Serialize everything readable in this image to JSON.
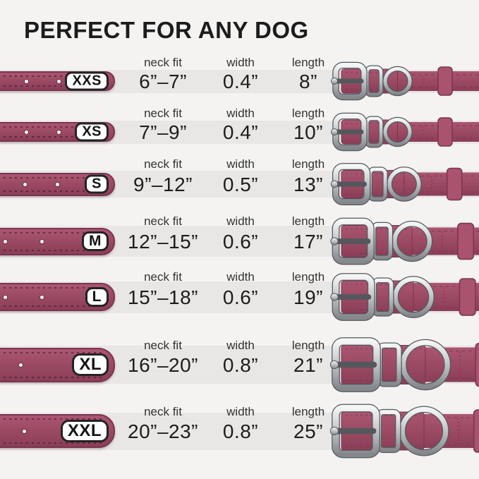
{
  "title": "PERFECT FOR ANY DOG",
  "columns": {
    "neck_fit": "neck fit",
    "width": "width",
    "length": "length"
  },
  "rows": [
    {
      "size": "XXS",
      "neck_fit": "6”–7”",
      "width": "0.4”",
      "length": "8”"
    },
    {
      "size": "XS",
      "neck_fit": "7”–9”",
      "width": "0.4”",
      "length": "10”"
    },
    {
      "size": "S",
      "neck_fit": "9”–12”",
      "width": "0.5”",
      "length": "13”"
    },
    {
      "size": "M",
      "neck_fit": "12”–15”",
      "width": "0.6”",
      "length": "17”"
    },
    {
      "size": "L",
      "neck_fit": "15”–18”",
      "width": "0.6”",
      "length": "19”"
    },
    {
      "size": "XL",
      "neck_fit": "16”–20”",
      "width": "0.8”",
      "length": "21”"
    },
    {
      "size": "XXL",
      "neck_fit": "20”–23”",
      "width": "0.8”",
      "length": "25”"
    }
  ],
  "colors": {
    "background": "#f4f3f2",
    "row_band": "#e9e7e5",
    "strap": "#9c4a63",
    "strap_light": "#aa5672",
    "strap_dark": "#8a3e58",
    "strap_edge": "#7a3450",
    "keeper": "#a9536f",
    "metal_light": "#f4f5f5",
    "metal_mid": "#c0c3c6",
    "metal_dark": "#84888c",
    "metal_outline": "#54585c",
    "text": "#1d1d1d"
  }
}
